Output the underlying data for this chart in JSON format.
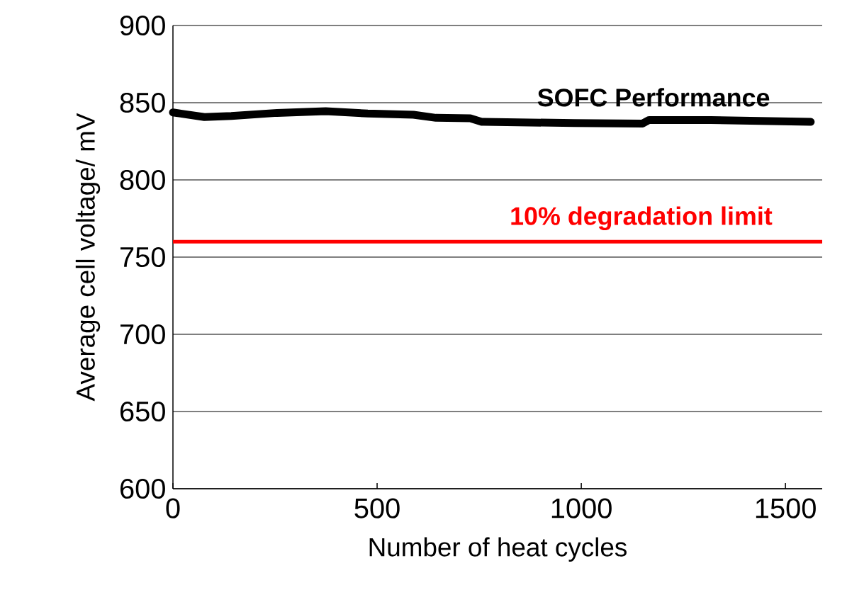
{
  "chart_data": {
    "type": "line",
    "xlabel": "Number of heat cycles",
    "ylabel": "Average cell voltage/ mV",
    "x": [
      0,
      77,
      143,
      255,
      374,
      477,
      589,
      644,
      728,
      756,
      761,
      983,
      1150,
      1166,
      1317,
      1562
    ],
    "series": [
      {
        "color": "#000000",
        "values": [
          843.7,
          840.7,
          841.4,
          843.4,
          844.5,
          843,
          842.2,
          840.2,
          839.9,
          837.6,
          837.6,
          836.8,
          836.5,
          838.8,
          838.8,
          837.6
        ]
      }
    ],
    "xlim": [
      0,
      1590
    ],
    "ylim": [
      600,
      900
    ],
    "xticks": [
      0,
      500,
      1000,
      1500
    ],
    "yticks": [
      600,
      650,
      700,
      750,
      800,
      850,
      900
    ],
    "grid": "y",
    "ref_lines": [
      {
        "axis": "y",
        "value": 760,
        "label": "10% degradation limit",
        "color": "#ff0000"
      }
    ],
    "annotations": [
      "SOFC Performance"
    ]
  }
}
